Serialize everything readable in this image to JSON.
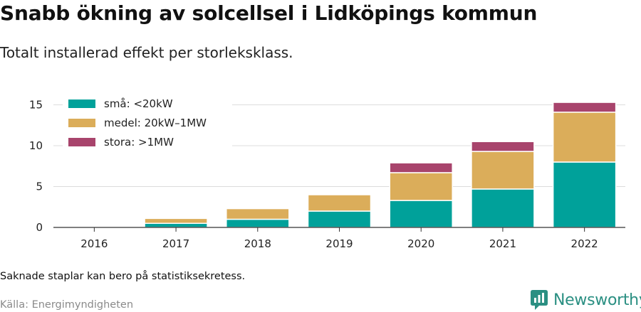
{
  "title": "Snabb ökning av solcellsel i Lidköpings kommun",
  "subtitle": "Totalt installerad effekt per storleksklass.",
  "note": "Saknade staplar kan bero på statistiksekretess.",
  "source": "Källa: Energimyndigheten",
  "brand": {
    "name": "Newsworthy",
    "logo_icon": "newsworthy-logo-icon",
    "color": "#2a8f82"
  },
  "chart_data": {
    "type": "bar",
    "stacked": true,
    "categories": [
      "2016",
      "2017",
      "2018",
      "2019",
      "2020",
      "2021",
      "2022"
    ],
    "series": [
      {
        "name": "små: <20kW",
        "color": "#00a19a",
        "values": [
          0,
          0.5,
          1.0,
          2.0,
          3.3,
          4.7,
          8.0
        ]
      },
      {
        "name": "medel: 20kW–1MW",
        "color": "#dbad5a",
        "values": [
          0,
          0.6,
          1.3,
          2.0,
          3.4,
          4.6,
          6.1
        ]
      },
      {
        "name": "stora: >1MW",
        "color": "#a8446c",
        "values": [
          0,
          0,
          0,
          0,
          1.2,
          1.2,
          1.2
        ]
      }
    ],
    "ylim": [
      0,
      16
    ],
    "yticks": [
      0,
      5,
      10,
      15
    ],
    "grid": true,
    "legend": "top-left",
    "xlabel": "",
    "ylabel": ""
  }
}
